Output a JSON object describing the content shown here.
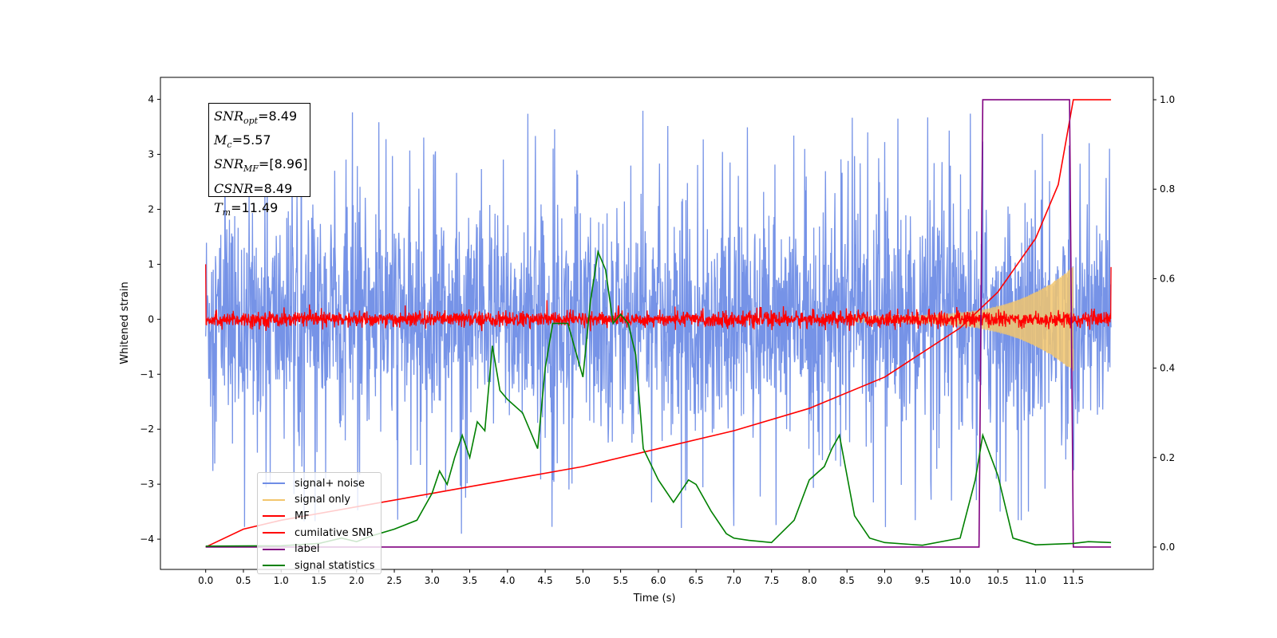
{
  "chart_data": {
    "type": "line",
    "xlabel": "Time (s)",
    "ylabel": "Whitened strain",
    "xlim": [
      -0.6,
      12.56
    ],
    "ylim": [
      -4.55,
      4.4
    ],
    "y2lim": [
      -0.05,
      1.05
    ],
    "x_ticks": [
      "0.0",
      "0.5",
      "1.0",
      "1.5",
      "2.0",
      "2.5",
      "3.0",
      "3.5",
      "4.0",
      "4.5",
      "5.0",
      "5.5",
      "6.0",
      "6.5",
      "7.0",
      "7.5",
      "8.0",
      "8.5",
      "9.0",
      "9.5",
      "10.0",
      "10.5",
      "11.0",
      "11.5"
    ],
    "y_ticks": [
      "4",
      "3",
      "2",
      "1",
      "0",
      "−1",
      "−2",
      "−3",
      "−4"
    ],
    "y2_ticks": [
      "1.0",
      "0.8",
      "0.6",
      "0.4",
      "0.2",
      "0.0"
    ],
    "grid": false,
    "legend_position": "lower-left",
    "annotation": {
      "snr_opt": "=8.49",
      "mc": "=5.57",
      "snr_mf": "=[8.96]",
      "csnr": "=8.49",
      "tm": "=11.49"
    },
    "series": [
      {
        "name": "signal+ noise",
        "color": "#6f8de6",
        "axis": "left",
        "description": "noise band approx ±1.7 with spikes up to ±4, t 0–12"
      },
      {
        "name": "signal only",
        "color": "#f2c66d",
        "axis": "left",
        "description": "chirp, amplitude grows to ~0.95 at t≈11.49"
      },
      {
        "name": "MF",
        "color": "#ff0000",
        "axis": "left",
        "description": "noisy trace around 0, amplitude ~0.2, edges reach 1.0"
      },
      {
        "name": "cumilative SNR",
        "color": "#ff0000",
        "axis": "right",
        "x": [
          0.0,
          0.5,
          1.0,
          2.0,
          3.0,
          4.0,
          5.0,
          6.0,
          7.0,
          8.0,
          9.0,
          10.0,
          10.5,
          11.0,
          11.3,
          11.5,
          12.0
        ],
        "y": [
          0.0,
          0.04,
          0.06,
          0.09,
          0.12,
          0.15,
          0.18,
          0.22,
          0.26,
          0.31,
          0.38,
          0.49,
          0.57,
          0.69,
          0.81,
          1.0,
          1.0
        ]
      },
      {
        "name": "label",
        "color": "#800080",
        "axis": "right",
        "x": [
          0.0,
          10.25,
          10.3,
          11.45,
          11.5,
          12.0
        ],
        "y": [
          0.0,
          0.0,
          1.0,
          1.0,
          0.0,
          0.0
        ]
      },
      {
        "name": "signal statistics",
        "color": "#008000",
        "axis": "right",
        "x": [
          0.0,
          1.0,
          1.5,
          1.8,
          2.0,
          2.2,
          2.5,
          2.8,
          3.0,
          3.1,
          3.2,
          3.3,
          3.4,
          3.5,
          3.6,
          3.7,
          3.8,
          3.9,
          4.0,
          4.2,
          4.4,
          4.5,
          4.6,
          4.8,
          5.0,
          5.1,
          5.2,
          5.3,
          5.4,
          5.5,
          5.6,
          5.7,
          5.8,
          6.0,
          6.2,
          6.4,
          6.5,
          6.7,
          6.9,
          7.0,
          7.2,
          7.5,
          7.8,
          8.0,
          8.2,
          8.3,
          8.4,
          8.6,
          8.8,
          9.0,
          9.5,
          10.0,
          10.2,
          10.3,
          10.5,
          10.7,
          11.0,
          11.5,
          11.7,
          12.0
        ],
        "y": [
          0.002,
          0.003,
          0.008,
          0.02,
          0.012,
          0.025,
          0.04,
          0.06,
          0.12,
          0.17,
          0.14,
          0.2,
          0.25,
          0.2,
          0.28,
          0.26,
          0.45,
          0.35,
          0.33,
          0.3,
          0.22,
          0.4,
          0.5,
          0.5,
          0.38,
          0.55,
          0.66,
          0.62,
          0.5,
          0.52,
          0.5,
          0.43,
          0.22,
          0.15,
          0.1,
          0.15,
          0.14,
          0.08,
          0.03,
          0.02,
          0.015,
          0.01,
          0.06,
          0.15,
          0.18,
          0.22,
          0.25,
          0.07,
          0.02,
          0.01,
          0.004,
          0.02,
          0.15,
          0.25,
          0.16,
          0.02,
          0.005,
          0.008,
          0.012,
          0.01
        ]
      }
    ]
  }
}
